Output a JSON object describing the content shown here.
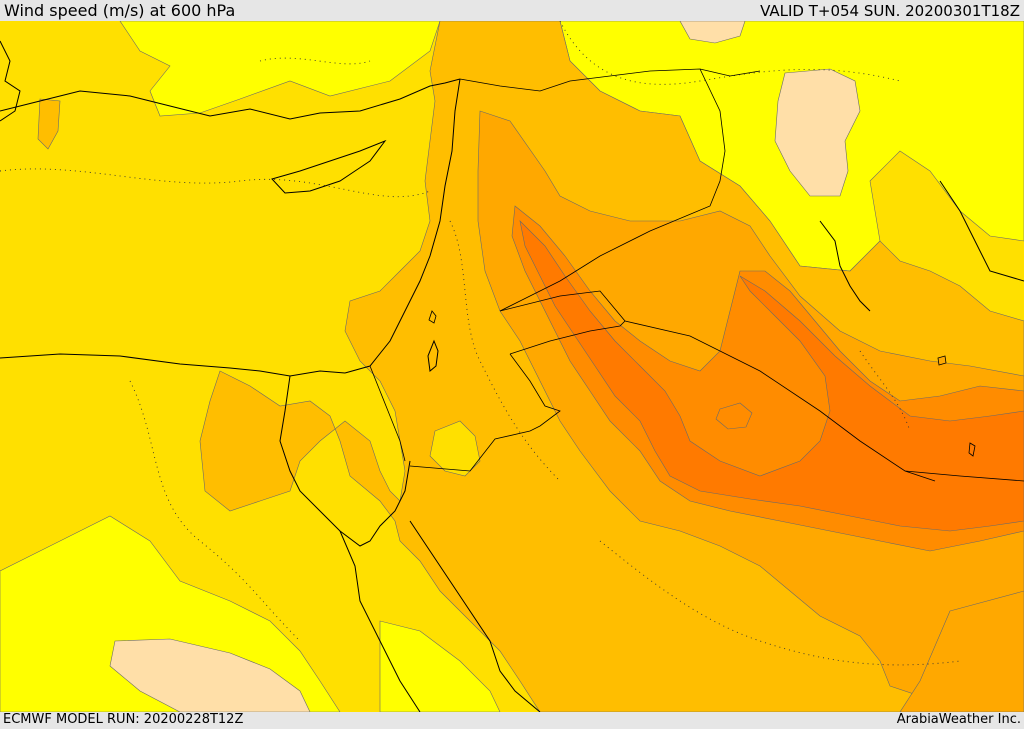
{
  "header": {
    "title": "Wind speed (m/s) at 600 hPa",
    "valid_time": "VALID T+054 SUN. 20200301T18Z"
  },
  "footer": {
    "model_run": "ECMWF MODEL RUN: 20200228T12Z",
    "credit": "ArabiaWeather Inc."
  },
  "map": {
    "layers": [
      "filled-wind-speed-contours",
      "coastlines",
      "country-borders",
      "dotted-contours"
    ],
    "colors": {
      "pale_peach": "#ffdfa8",
      "yellow": "#ffff00",
      "gold_yellow": "#ffe000",
      "amber_light": "#ffd000",
      "amber": "#ffbe00",
      "orange_light": "#ffa800",
      "orange": "#ff8c00",
      "deep_orange": "#ff7a00"
    }
  }
}
